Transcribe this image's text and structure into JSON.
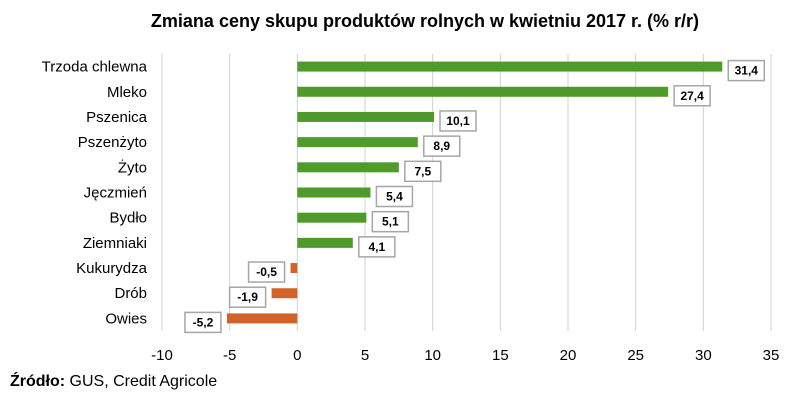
{
  "chart_data": {
    "type": "bar",
    "orientation": "horizontal",
    "title": "Zmiana ceny skupu produktów rolnych w kwietniu 2017 r. (% r/r)",
    "xlabel": "",
    "ylabel": "",
    "xlim": [
      -10,
      35
    ],
    "x_ticks": [
      "-10",
      "-5",
      "0",
      "5",
      "10",
      "15",
      "20",
      "25",
      "30",
      "35"
    ],
    "x_tick_values": [
      -10,
      -5,
      0,
      5,
      10,
      15,
      20,
      25,
      30,
      35
    ],
    "grid": "vertical",
    "categories": [
      "Trzoda chlewna",
      "Mleko",
      "Pszenica",
      "Pszenżyto",
      "Żyto",
      "Jęczmień",
      "Bydło",
      "Ziemniaki",
      "Kukurydza",
      "Drób",
      "Owies"
    ],
    "values": [
      31.4,
      27.4,
      10.1,
      8.9,
      7.5,
      5.4,
      5.1,
      4.1,
      -0.5,
      -1.9,
      -5.2
    ],
    "value_labels": [
      "31,4",
      "27,4",
      "10,1",
      "8,9",
      "7,5",
      "5,4",
      "5,1",
      "4,1",
      "-0,5",
      "-1,9",
      "-5,2"
    ],
    "colors": {
      "positive": "#4e9a2a",
      "negative": "#d0622a",
      "grid": "#d0d0d0",
      "label_border": "#a6a6a6"
    }
  },
  "source": {
    "label": "Źródło:",
    "text": " GUS, Credit Agricole"
  }
}
